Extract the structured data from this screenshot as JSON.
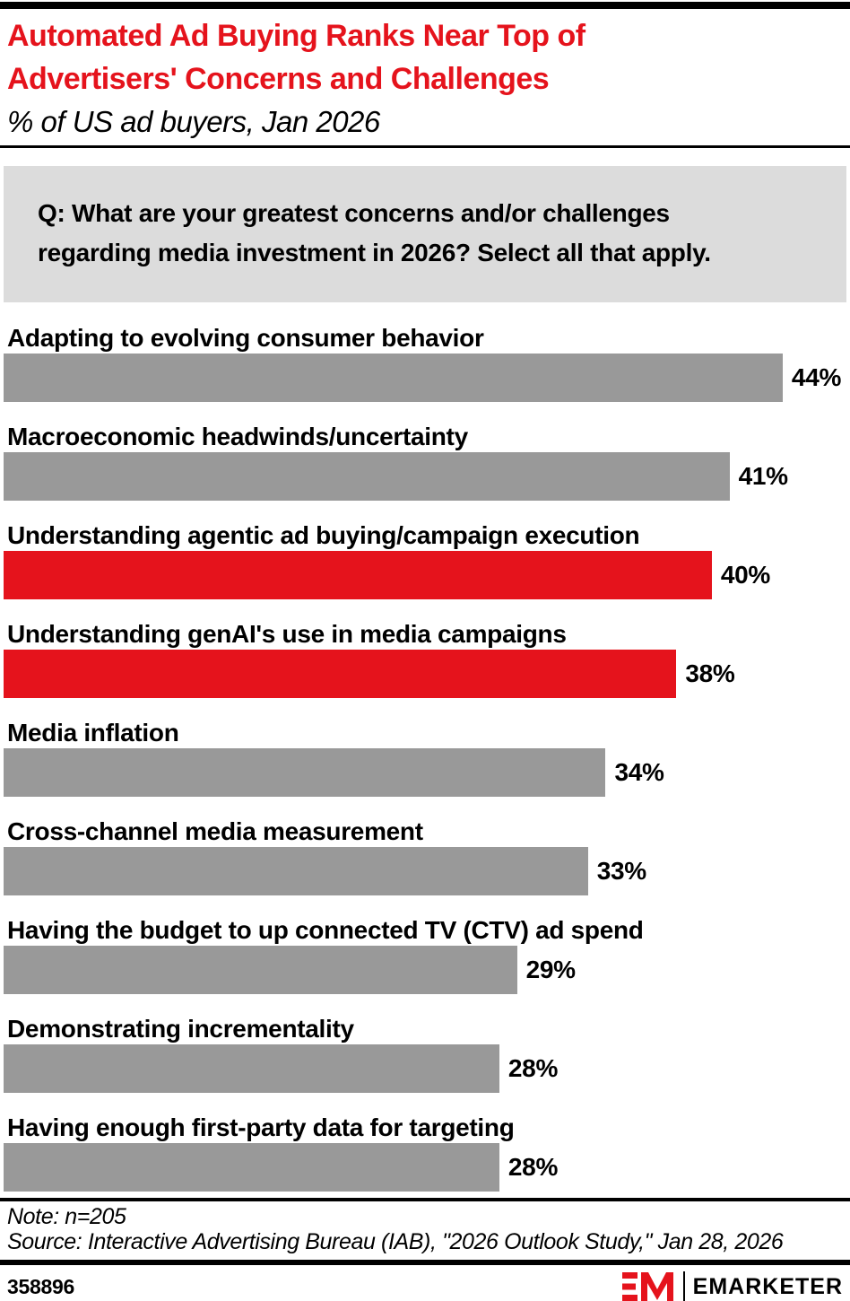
{
  "colors": {
    "accent_red": "#E5131C",
    "bar_gray": "#999999",
    "question_box_bg": "#DCDCDC",
    "text": "#000000"
  },
  "header": {
    "title_lines": [
      "Automated Ad Buying Ranks Near Top of",
      "Advertisers' Concerns and Challenges"
    ],
    "title": "Automated Ad Buying Ranks Near Top of Advertisers' Concerns and Challenges",
    "subtitle": "% of US ad buyers, Jan 2026"
  },
  "question": {
    "lines": [
      "Q: What are your greatest concerns and/or challenges",
      "regarding media investment in 2026? Select all that apply."
    ],
    "full": "Q: What are your greatest concerns and/or challenges regarding media investment in 2026? Select all that apply."
  },
  "chart_data": {
    "type": "bar",
    "orientation": "horizontal",
    "title": "Automated Ad Buying Ranks Near Top of Advertisers' Concerns and Challenges",
    "subtitle": "% of US ad buyers, Jan 2026",
    "unit": "%",
    "categories": [
      "Adapting to evolving consumer behavior",
      "Macroeconomic headwinds/uncertainty",
      "Understanding agentic ad buying/campaign execution",
      "Understanding genAI's use in media campaigns",
      "Media inflation",
      "Cross-channel media measurement",
      "Having the budget to up connected TV (CTV) ad spend",
      "Demonstrating incrementality",
      "Having enough first-party data for targeting"
    ],
    "values": [
      44,
      41,
      40,
      38,
      34,
      33,
      29,
      28,
      28
    ],
    "value_labels": [
      "44%",
      "41%",
      "40%",
      "38%",
      "34%",
      "33%",
      "29%",
      "28%",
      "28%"
    ],
    "bar_colors": [
      "#999999",
      "#999999",
      "#E5131C",
      "#E5131C",
      "#999999",
      "#999999",
      "#999999",
      "#999999",
      "#999999"
    ],
    "highlight_color": "#E5131C",
    "default_color": "#999999",
    "xlim": [
      0,
      47.6
    ],
    "grid": false,
    "legend": "none"
  },
  "footer": {
    "note": "Note: n=205",
    "source": "Source: Interactive Advertising Bureau (IAB), \"2026 Outlook Study,\" Jan 28, 2026",
    "chart_id": "358896",
    "brand": "EMARKETER"
  }
}
